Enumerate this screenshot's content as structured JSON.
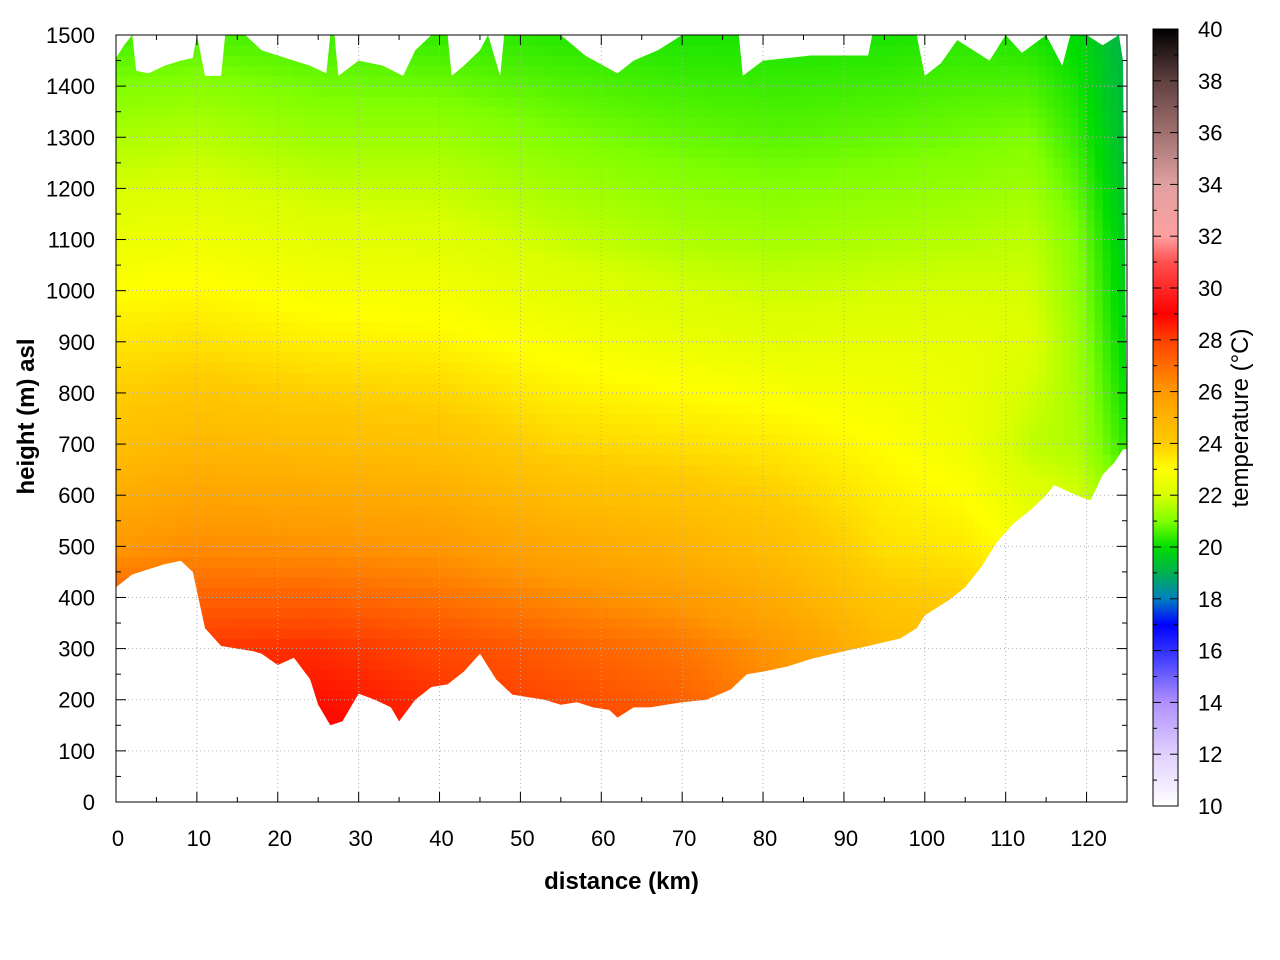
{
  "chart_data": {
    "type": "heatmap",
    "xlabel": "distance (km)",
    "ylabel": "height (m) asl",
    "colorbar_label": "temperature (°C)",
    "xlim": [
      0,
      125
    ],
    "ylim": [
      0,
      1500
    ],
    "clim": [
      10,
      40
    ],
    "x_ticks": [
      0,
      10,
      20,
      30,
      40,
      50,
      60,
      70,
      80,
      90,
      100,
      110,
      120
    ],
    "y_ticks": [
      0,
      100,
      200,
      300,
      400,
      500,
      600,
      700,
      800,
      900,
      1000,
      1100,
      1200,
      1300,
      1400,
      1500
    ],
    "colorbar_ticks": [
      10,
      12,
      14,
      16,
      18,
      20,
      22,
      24,
      26,
      28,
      30,
      32,
      34,
      36,
      38,
      40
    ],
    "grid": true,
    "colormap": [
      {
        "t": 10,
        "color": "#ffffff"
      },
      {
        "t": 12,
        "color": "#e0d0ff"
      },
      {
        "t": 14,
        "color": "#b090ff"
      },
      {
        "t": 16,
        "color": "#3030ff"
      },
      {
        "t": 17,
        "color": "#0000ff"
      },
      {
        "t": 18,
        "color": "#0080c0"
      },
      {
        "t": 19,
        "color": "#00b050"
      },
      {
        "t": 20,
        "color": "#00dd00"
      },
      {
        "t": 21,
        "color": "#80ff00"
      },
      {
        "t": 22,
        "color": "#d8ff00"
      },
      {
        "t": 23,
        "color": "#ffff00"
      },
      {
        "t": 24,
        "color": "#ffcc00"
      },
      {
        "t": 26,
        "color": "#ff9900"
      },
      {
        "t": 28,
        "color": "#ff4000"
      },
      {
        "t": 29,
        "color": "#ff0000"
      },
      {
        "t": 31,
        "color": "#ff5050"
      },
      {
        "t": 32,
        "color": "#ffa0a0"
      },
      {
        "t": 34,
        "color": "#e0a0a0"
      },
      {
        "t": 36,
        "color": "#a07070"
      },
      {
        "t": 38,
        "color": "#604040"
      },
      {
        "t": 40,
        "color": "#000000"
      }
    ],
    "terrain_profile": [
      [
        0,
        420
      ],
      [
        2,
        445
      ],
      [
        4,
        455
      ],
      [
        6,
        465
      ],
      [
        8,
        472
      ],
      [
        9.5,
        450
      ],
      [
        11,
        340
      ],
      [
        13,
        305
      ],
      [
        15,
        300
      ],
      [
        17,
        295
      ],
      [
        18,
        290
      ],
      [
        20,
        268
      ],
      [
        22,
        282
      ],
      [
        24,
        240
      ],
      [
        25,
        190
      ],
      [
        26.5,
        150
      ],
      [
        28,
        158
      ],
      [
        30,
        212
      ],
      [
        32,
        200
      ],
      [
        34,
        185
      ],
      [
        35,
        158
      ],
      [
        37,
        200
      ],
      [
        39,
        225
      ],
      [
        41,
        230
      ],
      [
        43,
        255
      ],
      [
        45,
        290
      ],
      [
        47,
        240
      ],
      [
        49,
        210
      ],
      [
        51,
        205
      ],
      [
        53,
        200
      ],
      [
        55,
        190
      ],
      [
        57,
        195
      ],
      [
        59,
        185
      ],
      [
        61,
        180
      ],
      [
        62,
        165
      ],
      [
        64,
        185
      ],
      [
        66,
        185
      ],
      [
        68,
        190
      ],
      [
        70,
        195
      ],
      [
        73,
        200
      ],
      [
        76,
        220
      ],
      [
        78,
        250
      ],
      [
        80,
        255
      ],
      [
        83,
        265
      ],
      [
        86,
        280
      ],
      [
        90,
        295
      ],
      [
        93,
        305
      ],
      [
        97,
        320
      ],
      [
        99,
        340
      ],
      [
        100,
        365
      ],
      [
        103,
        395
      ],
      [
        105,
        420
      ],
      [
        107,
        460
      ],
      [
        109,
        510
      ],
      [
        111,
        545
      ],
      [
        113,
        570
      ],
      [
        115,
        600
      ],
      [
        116,
        620
      ],
      [
        118,
        605
      ],
      [
        119.5,
        595
      ],
      [
        120.5,
        590
      ],
      [
        122,
        640
      ],
      [
        123.5,
        665
      ],
      [
        124.5,
        690
      ]
    ],
    "top_profile": [
      [
        0,
        1455
      ],
      [
        1,
        1480
      ],
      [
        2,
        1500
      ],
      [
        2.5,
        1430
      ],
      [
        4,
        1425
      ],
      [
        6,
        1440
      ],
      [
        8,
        1450
      ],
      [
        9.5,
        1455
      ],
      [
        10,
        1500
      ],
      [
        11,
        1420
      ],
      [
        13,
        1420
      ],
      [
        13.5,
        1500
      ],
      [
        16,
        1500
      ],
      [
        18,
        1470
      ],
      [
        20,
        1460
      ],
      [
        22,
        1450
      ],
      [
        24,
        1440
      ],
      [
        26,
        1425
      ],
      [
        26.5,
        1500
      ],
      [
        27,
        1500
      ],
      [
        27.5,
        1420
      ],
      [
        30,
        1450
      ],
      [
        33,
        1440
      ],
      [
        35.5,
        1420
      ],
      [
        37,
        1470
      ],
      [
        39,
        1500
      ],
      [
        41,
        1500
      ],
      [
        41.5,
        1420
      ],
      [
        43,
        1440
      ],
      [
        45,
        1470
      ],
      [
        46,
        1500
      ],
      [
        47.5,
        1420
      ],
      [
        48,
        1500
      ],
      [
        55,
        1500
      ],
      [
        58,
        1460
      ],
      [
        62,
        1425
      ],
      [
        64,
        1450
      ],
      [
        67,
        1470
      ],
      [
        70,
        1500
      ],
      [
        77,
        1500
      ],
      [
        77.5,
        1420
      ],
      [
        80,
        1450
      ],
      [
        86,
        1460
      ],
      [
        93,
        1460
      ],
      [
        93.5,
        1500
      ],
      [
        99,
        1500
      ],
      [
        100,
        1420
      ],
      [
        102,
        1445
      ],
      [
        104,
        1490
      ],
      [
        106,
        1470
      ],
      [
        108,
        1450
      ],
      [
        110,
        1500
      ],
      [
        112,
        1465
      ],
      [
        115,
        1500
      ],
      [
        117,
        1440
      ],
      [
        118,
        1500
      ],
      [
        120,
        1500
      ],
      [
        122,
        1480
      ],
      [
        124,
        1500
      ],
      [
        124.5,
        1450
      ]
    ],
    "temperature_profiles": {
      "heights": [
        150,
        300,
        500,
        700,
        900,
        1100,
        1300,
        1500
      ],
      "columns": [
        {
          "x": 0,
          "t": [
            29,
            28.5,
            26,
            24.5,
            23.5,
            22.5,
            21.5,
            20.5
          ]
        },
        {
          "x": 10,
          "t": [
            28.8,
            28.2,
            26.3,
            24.8,
            23.6,
            22.6,
            21.6,
            20.6
          ]
        },
        {
          "x": 25,
          "t": [
            29,
            28.3,
            26.2,
            24.6,
            23.3,
            22.3,
            21.3,
            20.5
          ]
        },
        {
          "x": 40,
          "t": [
            28.5,
            27.8,
            26,
            24.4,
            23.2,
            22.2,
            21.3,
            20.4
          ]
        },
        {
          "x": 55,
          "t": [
            28,
            27.3,
            25.4,
            23.8,
            22.8,
            21.8,
            21,
            20.3
          ]
        },
        {
          "x": 70,
          "t": [
            27.5,
            26.8,
            25,
            23.6,
            22.5,
            21.5,
            20.8,
            20.2
          ]
        },
        {
          "x": 82,
          "t": [
            26.5,
            26,
            24.5,
            23.4,
            22.3,
            21.4,
            20.7,
            20.2
          ]
        },
        {
          "x": 95,
          "t": [
            25.5,
            24.8,
            23.6,
            23,
            22.4,
            21.5,
            20.8,
            20.2
          ]
        },
        {
          "x": 105,
          "t": [
            25,
            24.5,
            23.4,
            22.6,
            22.4,
            21.6,
            20.9,
            20.3
          ]
        },
        {
          "x": 113,
          "t": [
            24.8,
            24,
            22.8,
            21.7,
            22.2,
            21.7,
            21,
            20.2
          ]
        },
        {
          "x": 119,
          "t": [
            24.5,
            23.6,
            22.4,
            21.5,
            21.3,
            21,
            20.4,
            19.9
          ]
        },
        {
          "x": 125,
          "t": [
            24,
            23,
            21.5,
            20.3,
            19.8,
            19.5,
            19.2,
            19
          ]
        }
      ]
    }
  }
}
